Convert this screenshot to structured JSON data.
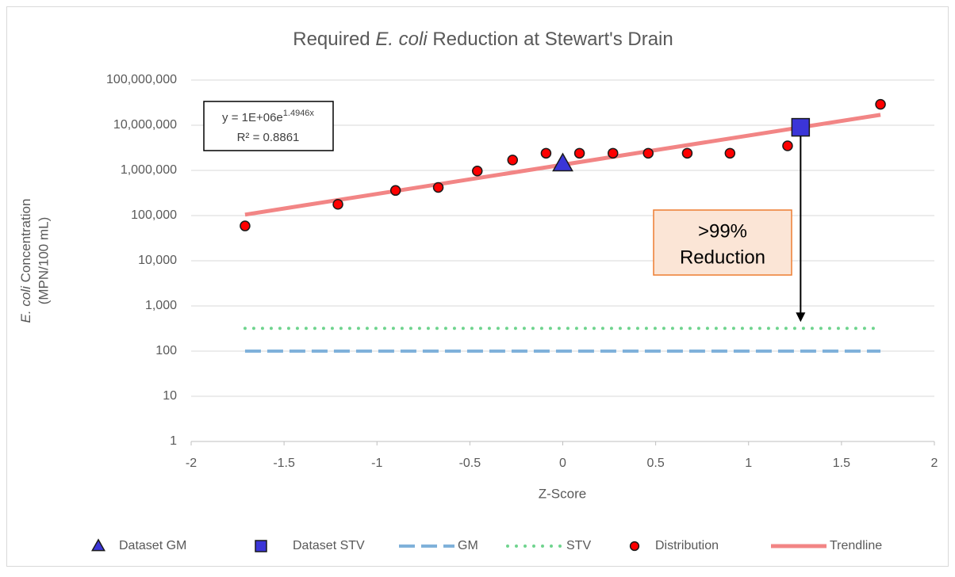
{
  "chart_data": {
    "type": "scatter",
    "title": [
      "Required ",
      "E. coli",
      " Reduction at Stewart's Drain"
    ],
    "x_label": "Z-Score",
    "y_label": [
      "E. coli",
      " Concentration",
      "(MPN/100 mL)"
    ],
    "xlim": [
      -2,
      2
    ],
    "xticks": [
      -2,
      -1.5,
      -1,
      -0.5,
      0,
      0.5,
      1,
      1.5,
      2
    ],
    "ylim": [
      1,
      100000000
    ],
    "log_y": true,
    "grid": true,
    "yticks": [
      1,
      10,
      100,
      {
        "value": 1000,
        "label": "1,000"
      },
      {
        "value": 10000,
        "label": "10,000"
      },
      {
        "value": 100000,
        "label": "100,000"
      },
      {
        "value": 1000000,
        "label": "1,000,000"
      },
      {
        "value": 10000000,
        "label": "10,000,000"
      },
      {
        "value": 100000000,
        "label": "100,000,000"
      }
    ],
    "legend": "bottom",
    "equation": {
      "text": "y = 1E+06e",
      "exponent": "1.4946x",
      "r_squared": "R² = 0.8861"
    },
    "annotation": [
      ">99%",
      "Reduction"
    ],
    "series": [
      {
        "name": "Dataset GM",
        "marker": "triangle",
        "color": "#3b35d8",
        "x": [
          0
        ],
        "values": [
          1400000
        ]
      },
      {
        "name": "Dataset STV",
        "marker": "square",
        "color": "#3b35d8",
        "x": [
          1.28
        ],
        "values": [
          9000000
        ]
      },
      {
        "name": "GM",
        "line": "dashed",
        "color": "#7fb1da",
        "x": [
          -1.71,
          1.71
        ],
        "values": [
          100,
          100
        ]
      },
      {
        "name": "STV",
        "line": "dotted",
        "color": "#6fd48e",
        "x": [
          -1.71,
          1.71
        ],
        "values": [
          320,
          320
        ]
      },
      {
        "name": "Distribution",
        "marker": "circle",
        "color": "#ff0000",
        "x": [
          -1.71,
          -1.21,
          -0.9,
          -0.67,
          -0.46,
          -0.27,
          -0.09,
          0.09,
          0.27,
          0.46,
          0.67,
          0.9,
          1.21,
          1.71
        ],
        "values": [
          59000,
          178000,
          360000,
          420000,
          970000,
          1700000,
          2400000,
          2400000,
          2400000,
          2400000,
          2400000,
          2400000,
          3500000,
          29000000
        ]
      },
      {
        "name": "Trendline",
        "line": "solid",
        "color": "#f28585",
        "x": [
          -1.71,
          1.71
        ],
        "values": [
          105000,
          17000000
        ]
      }
    ]
  }
}
